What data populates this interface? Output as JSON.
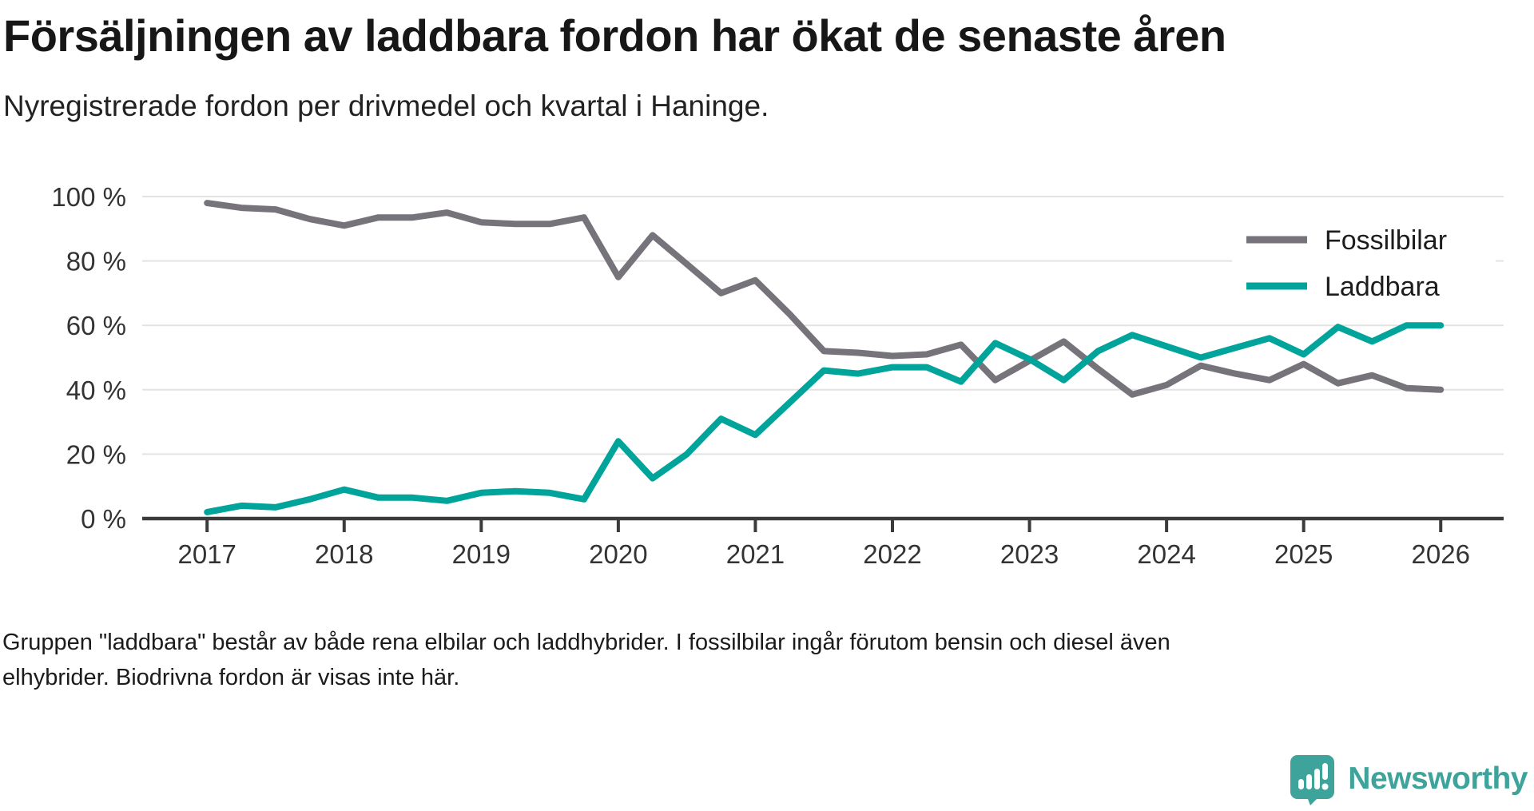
{
  "header": {
    "title": "Försäljningen av laddbara fordon har ökat de senaste åren",
    "subtitle": "Nyregistrerade fordon per drivmedel och kvartal i Haninge."
  },
  "footer": {
    "note": "Gruppen \"laddbara\" består av både rena elbilar och laddhybrider. I fossilbilar ingår förutom bensin och diesel även elhybrider. Biodrivna fordon är visas inte här."
  },
  "branding": {
    "name": "Newsworthy",
    "logo_icon": "bar-chart-speech-bubble-icon",
    "color": "#3ea49b"
  },
  "chart_data": {
    "type": "line",
    "title": "Försäljningen av laddbara fordon har ökat de senaste åren",
    "subtitle": "Nyregistrerade fordon per drivmedel och kvartal i Haninge.",
    "unit": "%",
    "grid": true,
    "legend_position": "top-right",
    "ylim": [
      0,
      100
    ],
    "xlim_years": [
      2016.5,
      2026.5
    ],
    "yticks": [
      {
        "value": 0,
        "label": "0 %"
      },
      {
        "value": 20,
        "label": "20 %"
      },
      {
        "value": 40,
        "label": "40 %"
      },
      {
        "value": 60,
        "label": "60 %"
      },
      {
        "value": 80,
        "label": "80 %"
      },
      {
        "value": 100,
        "label": "100 %"
      }
    ],
    "xticks": [
      {
        "value": 2017,
        "label": "2017"
      },
      {
        "value": 2018,
        "label": "2018"
      },
      {
        "value": 2019,
        "label": "2019"
      },
      {
        "value": 2020,
        "label": "2020"
      },
      {
        "value": 2021,
        "label": "2021"
      },
      {
        "value": 2022,
        "label": "2022"
      },
      {
        "value": 2023,
        "label": "2023"
      },
      {
        "value": 2024,
        "label": "2024"
      },
      {
        "value": 2025,
        "label": "2025"
      },
      {
        "value": 2026,
        "label": "2026"
      }
    ],
    "categories": [
      "2017 Q1",
      "2017 Q2",
      "2017 Q3",
      "2017 Q4",
      "2018 Q1",
      "2018 Q2",
      "2018 Q3",
      "2018 Q4",
      "2019 Q1",
      "2019 Q2",
      "2019 Q3",
      "2019 Q4",
      "2020 Q1",
      "2020 Q2",
      "2020 Q3",
      "2020 Q4",
      "2021 Q1",
      "2021 Q2",
      "2021 Q3",
      "2021 Q4",
      "2022 Q1",
      "2022 Q2",
      "2022 Q3",
      "2022 Q4",
      "2023 Q1",
      "2023 Q2",
      "2023 Q3",
      "2023 Q4",
      "2024 Q1",
      "2024 Q2",
      "2024 Q3",
      "2024 Q4",
      "2025 Q1",
      "2025 Q2",
      "2025 Q3",
      "2025 Q4",
      "2026 Q1"
    ],
    "series": [
      {
        "name": "Fossilbilar",
        "color": "#76747a",
        "values": [
          98,
          96.5,
          96,
          93,
          91,
          93.5,
          93.5,
          95,
          92,
          91.5,
          91.5,
          93.5,
          75,
          88,
          79,
          70,
          74,
          63.5,
          52,
          51.5,
          50.5,
          51,
          54,
          43,
          49,
          55,
          46.5,
          38.5,
          41.5,
          47.5,
          45,
          43,
          48,
          42,
          44.5,
          40.5,
          40
        ]
      },
      {
        "name": "Laddbara",
        "color": "#00a49a",
        "values": [
          2,
          4,
          3.5,
          6,
          9,
          6.5,
          6.5,
          5.5,
          8,
          8.5,
          8,
          6,
          24,
          12.5,
          20,
          31,
          26,
          36,
          46,
          45,
          47,
          47,
          42.5,
          54.5,
          49.5,
          43,
          52,
          57,
          53.5,
          50,
          53,
          56,
          51,
          59.5,
          55,
          60,
          60
        ]
      }
    ]
  }
}
